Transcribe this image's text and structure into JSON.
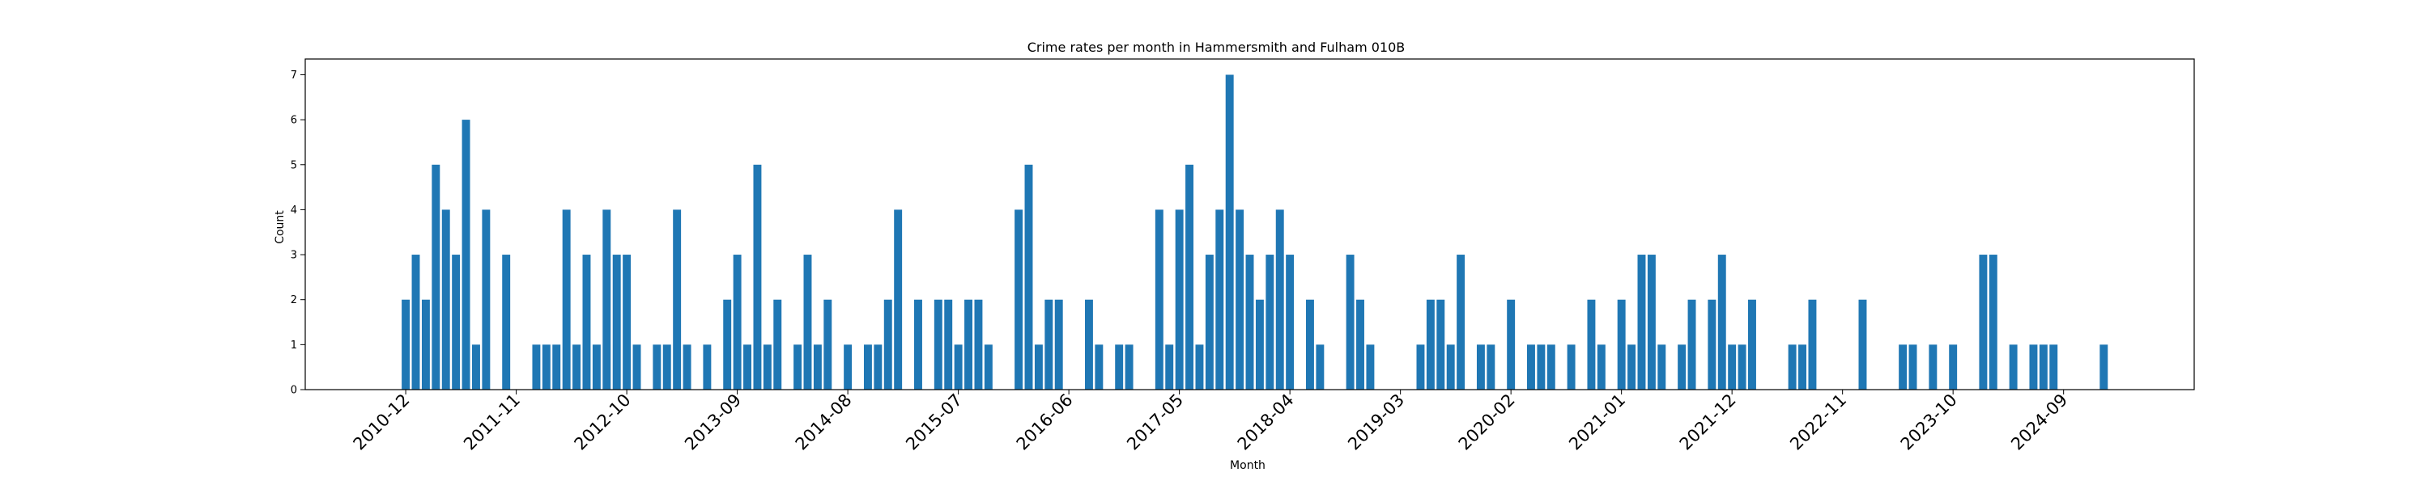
{
  "chart_data": {
    "type": "bar",
    "title": "Crime rates per month in Hammersmith and Fulham 010B",
    "xlabel": "Month",
    "ylabel": "Count",
    "ylim": [
      0,
      7.35
    ],
    "yticks": [
      0,
      1,
      2,
      3,
      4,
      5,
      6,
      7
    ],
    "xlim": [
      "2010-02",
      "2025-10"
    ],
    "xticks": [
      "2010-12",
      "2011-11",
      "2012-10",
      "2013-09",
      "2014-08",
      "2015-07",
      "2016-06",
      "2017-05",
      "2018-04",
      "2019-03",
      "2020-02",
      "2021-01",
      "2021-12",
      "2022-11",
      "2023-10",
      "2024-09"
    ],
    "grid": false,
    "color": "#1f77b4",
    "series": [
      {
        "x": [
          "2010-12",
          "2011-01",
          "2011-02",
          "2011-03",
          "2011-04",
          "2011-05",
          "2011-06",
          "2011-07",
          "2011-08",
          "2011-10",
          "2012-01",
          "2012-02",
          "2012-03",
          "2012-04",
          "2012-05",
          "2012-06",
          "2012-07",
          "2012-08",
          "2012-09",
          "2012-10",
          "2012-11",
          "2013-01",
          "2013-02",
          "2013-03",
          "2013-04",
          "2013-06",
          "2013-08",
          "2013-09",
          "2013-10",
          "2013-11",
          "2013-12",
          "2014-01",
          "2014-03",
          "2014-04",
          "2014-05",
          "2014-06",
          "2014-08",
          "2014-10",
          "2014-11",
          "2014-12",
          "2015-01",
          "2015-03",
          "2015-05",
          "2015-06",
          "2015-07",
          "2015-08",
          "2015-09",
          "2015-10",
          "2016-01",
          "2016-02",
          "2016-03",
          "2016-04",
          "2016-05",
          "2016-08",
          "2016-09",
          "2016-11",
          "2016-12",
          "2017-03",
          "2017-04",
          "2017-05",
          "2017-06",
          "2017-07",
          "2017-08",
          "2017-09",
          "2017-10",
          "2017-11",
          "2017-12",
          "2018-01",
          "2018-02",
          "2018-03",
          "2018-04",
          "2018-06",
          "2018-07",
          "2018-10",
          "2018-11",
          "2018-12",
          "2019-05",
          "2019-06",
          "2019-07",
          "2019-08",
          "2019-09",
          "2019-11",
          "2019-12",
          "2020-02",
          "2020-04",
          "2020-05",
          "2020-06",
          "2020-08",
          "2020-10",
          "2020-11",
          "2021-01",
          "2021-02",
          "2021-03",
          "2021-04",
          "2021-05",
          "2021-07",
          "2021-08",
          "2021-10",
          "2021-11",
          "2021-12",
          "2022-01",
          "2022-02",
          "2022-06",
          "2022-07",
          "2022-08",
          "2023-01",
          "2023-05",
          "2023-06",
          "2023-08",
          "2023-10",
          "2024-01",
          "2024-02",
          "2024-04",
          "2024-06",
          "2024-07",
          "2024-08",
          "2025-01"
        ],
        "values": [
          2,
          3,
          2,
          5,
          4,
          3,
          6,
          1,
          4,
          3,
          1,
          1,
          1,
          4,
          1,
          3,
          1,
          4,
          3,
          3,
          1,
          1,
          1,
          4,
          1,
          1,
          2,
          3,
          1,
          5,
          1,
          2,
          1,
          3,
          1,
          2,
          1,
          1,
          1,
          2,
          4,
          2,
          2,
          2,
          1,
          2,
          2,
          1,
          4,
          5,
          1,
          2,
          2,
          2,
          1,
          1,
          1,
          4,
          1,
          4,
          5,
          1,
          3,
          4,
          7,
          4,
          3,
          2,
          3,
          4,
          3,
          2,
          1,
          3,
          2,
          1,
          1,
          2,
          2,
          1,
          3,
          1,
          1,
          2,
          1,
          1,
          1,
          1,
          2,
          1,
          2,
          1,
          3,
          3,
          1,
          1,
          2,
          2,
          3,
          1,
          1,
          2,
          1,
          1,
          2,
          2,
          1,
          1,
          1,
          1,
          3,
          3,
          1,
          1,
          1,
          1,
          1
        ]
      }
    ]
  }
}
